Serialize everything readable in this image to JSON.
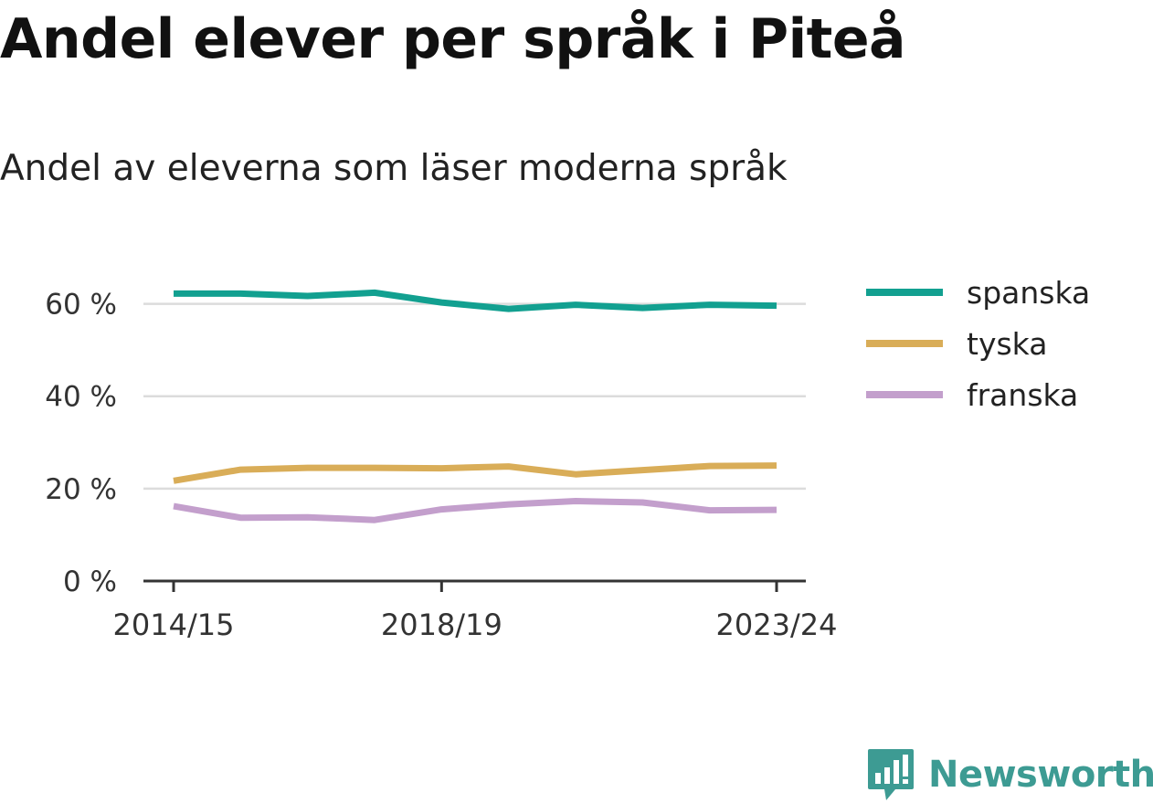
{
  "title": "Andel elever per språk i Piteå",
  "subtitle": "Andel av eleverna som läser moderna språk",
  "chart_data": {
    "type": "line",
    "x": [
      "2014/15",
      "2015/16",
      "2016/17",
      "2017/18",
      "2018/19",
      "2019/20",
      "2020/21",
      "2021/22",
      "2022/23",
      "2023/24"
    ],
    "x_tick_labels": [
      "2014/15",
      "2018/19",
      "2023/24"
    ],
    "y_tick_labels": [
      "0 %",
      "20 %",
      "40 %",
      "60 %"
    ],
    "y_ticks": [
      0,
      20,
      40,
      60
    ],
    "ylim": [
      0,
      70
    ],
    "grid": "horizontal",
    "legend_position": "right",
    "series": [
      {
        "name": "spanska",
        "color": "#12a090",
        "values": [
          62.2,
          62.2,
          61.7,
          62.4,
          60.3,
          58.9,
          59.8,
          59.1,
          59.8,
          59.6
        ]
      },
      {
        "name": "tyska",
        "color": "#d9ad58",
        "values": [
          21.7,
          24.1,
          24.5,
          24.5,
          24.4,
          24.8,
          23.1,
          24.0,
          24.9,
          25.0
        ]
      },
      {
        "name": "franska",
        "color": "#c39fcc",
        "values": [
          16.2,
          13.7,
          13.8,
          13.2,
          15.5,
          16.6,
          17.3,
          17.0,
          15.3,
          15.4
        ]
      }
    ]
  },
  "brand": {
    "name": "Newsworthy",
    "color": "#3d9b93",
    "icon": "chart-bubble-icon"
  }
}
